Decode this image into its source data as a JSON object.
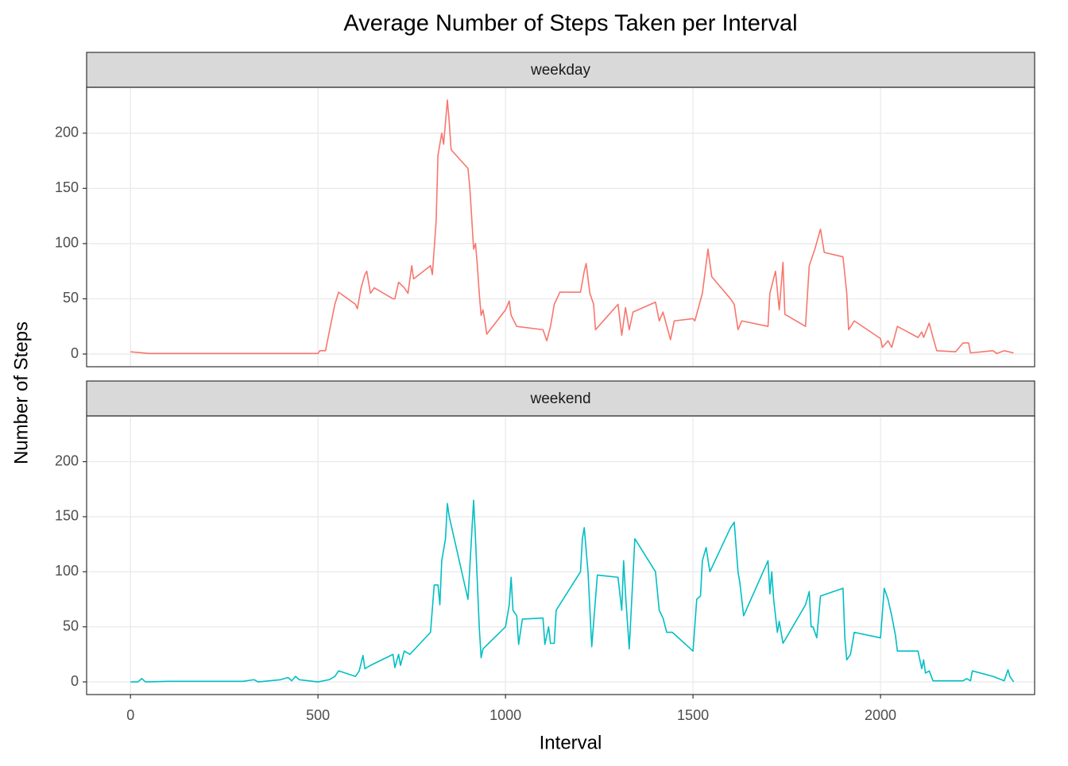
{
  "title": "Average Number of Steps Taken per Interval",
  "x_label": "Interval",
  "y_label": "Number of Steps",
  "chart_data": [
    {
      "type": "line",
      "series": [
        {
          "name": "weekday",
          "color": "#F8766D",
          "values": [
            2,
            0.5,
            0.5,
            0.5,
            0.5,
            0.5,
            0.5,
            0.5,
            0.5,
            3,
            3,
            20,
            45,
            56,
            45,
            41,
            60,
            72,
            75,
            55,
            60,
            50,
            50,
            65,
            60,
            55,
            80,
            68,
            80,
            72,
            120,
            180,
            200,
            190,
            210,
            230,
            210,
            185,
            168,
            150,
            95,
            100,
            80,
            55,
            35,
            40,
            30,
            18,
            40,
            48,
            35,
            25,
            22,
            12,
            25,
            45,
            56,
            56,
            75,
            82,
            55,
            45,
            22,
            45,
            17,
            42,
            22,
            38,
            47,
            30,
            38,
            13,
            30,
            32,
            30,
            55,
            95,
            70,
            50,
            45,
            22,
            30,
            25,
            55,
            75,
            40,
            83,
            36,
            25,
            80,
            95,
            113,
            92,
            88,
            55,
            22,
            30,
            14,
            6,
            12,
            6,
            25,
            15,
            20,
            15,
            28,
            15,
            3,
            2,
            10,
            10,
            1,
            3,
            0.5,
            3,
            1
          ]
        }
      ],
      "x": [
        0,
        50,
        100,
        150,
        200,
        300,
        400,
        450,
        500,
        505,
        520,
        530,
        545,
        555,
        600,
        605,
        615,
        625,
        630,
        640,
        650,
        700,
        705,
        715,
        730,
        740,
        750,
        755,
        800,
        805,
        815,
        820,
        830,
        835,
        840,
        845,
        850,
        855,
        900,
        905,
        915,
        920,
        925,
        930,
        935,
        940,
        945,
        950,
        1000,
        1010,
        1015,
        1030,
        1100,
        1110,
        1120,
        1130,
        1145,
        1200,
        1210,
        1215,
        1225,
        1235,
        1240,
        1300,
        1310,
        1320,
        1330,
        1340,
        1400,
        1410,
        1420,
        1440,
        1450,
        1500,
        1505,
        1525,
        1540,
        1550,
        1600,
        1610,
        1620,
        1630,
        1700,
        1705,
        1720,
        1730,
        1740,
        1745,
        1800,
        1810,
        1825,
        1840,
        1850,
        1900,
        1910,
        1915,
        1930,
        2000,
        2005,
        2020,
        2030,
        2045,
        2100,
        2110,
        2115,
        2130,
        2140,
        2150,
        2200,
        2220,
        2235,
        2240,
        2300,
        2310,
        2330,
        2355
      ],
      "xlim": [
        -117,
        2411
      ],
      "ylim": [
        -11.5,
        241.5
      ],
      "xticks": [
        0,
        500,
        1000,
        1500,
        2000
      ],
      "yticks": [
        0,
        50,
        100,
        150,
        200
      ],
      "grid": true
    },
    {
      "type": "line",
      "series": [
        {
          "name": "weekend",
          "color": "#00BFC4",
          "values": [
            0,
            0,
            3,
            0,
            0.5,
            0.5,
            2,
            0,
            2,
            4,
            1,
            5,
            2,
            0,
            2,
            5,
            10,
            5,
            10,
            24,
            12,
            15,
            25,
            13,
            25,
            15,
            28,
            25,
            45,
            88,
            88,
            70,
            110,
            130,
            162,
            150,
            75,
            105,
            165,
            130,
            90,
            50,
            22,
            30,
            50,
            70,
            95,
            65,
            60,
            34,
            57,
            58,
            34,
            50,
            35,
            35,
            65,
            100,
            130,
            140,
            100,
            32,
            97,
            95,
            65,
            110,
            80,
            30,
            130,
            100,
            65,
            58,
            45,
            45,
            28,
            75,
            78,
            110,
            122,
            100,
            140,
            145,
            100,
            90,
            60,
            110,
            80,
            100,
            75,
            45,
            55,
            35,
            70,
            82,
            50,
            50,
            40,
            78,
            85,
            40,
            20,
            25,
            45,
            40,
            85,
            75,
            60,
            42,
            28,
            28,
            12,
            20,
            8,
            10,
            1,
            1,
            1,
            3,
            1,
            10,
            5,
            1,
            11,
            5,
            0
          ]
        }
      ],
      "x": [
        0,
        20,
        30,
        40,
        100,
        300,
        330,
        340,
        400,
        420,
        430,
        440,
        450,
        500,
        530,
        545,
        555,
        600,
        610,
        620,
        625,
        640,
        700,
        705,
        715,
        720,
        730,
        745,
        800,
        810,
        820,
        825,
        830,
        840,
        845,
        850,
        900,
        905,
        915,
        920,
        925,
        930,
        935,
        940,
        1000,
        1010,
        1015,
        1020,
        1030,
        1035,
        1045,
        1100,
        1105,
        1115,
        1120,
        1130,
        1135,
        1200,
        1205,
        1210,
        1220,
        1230,
        1245,
        1300,
        1310,
        1315,
        1320,
        1330,
        1345,
        1400,
        1410,
        1420,
        1430,
        1445,
        1500,
        1510,
        1520,
        1525,
        1535,
        1545,
        1600,
        1610,
        1620,
        1625,
        1635,
        1700,
        1705,
        1710,
        1715,
        1725,
        1730,
        1740,
        1800,
        1810,
        1815,
        1820,
        1830,
        1840,
        1900,
        1905,
        1910,
        1920,
        1930,
        2000,
        2010,
        2020,
        2030,
        2040,
        2045,
        2100,
        2110,
        2115,
        2120,
        2130,
        2140,
        2200,
        2220,
        2230,
        2240,
        2245,
        2300,
        2330,
        2340,
        2345,
        2355
      ],
      "xlim": [
        -117,
        2411
      ],
      "ylim": [
        -11.5,
        241.5
      ],
      "xticks": [
        0,
        500,
        1000,
        1500,
        2000
      ],
      "yticks": [
        0,
        50,
        100,
        150,
        200
      ],
      "grid": true
    }
  ]
}
